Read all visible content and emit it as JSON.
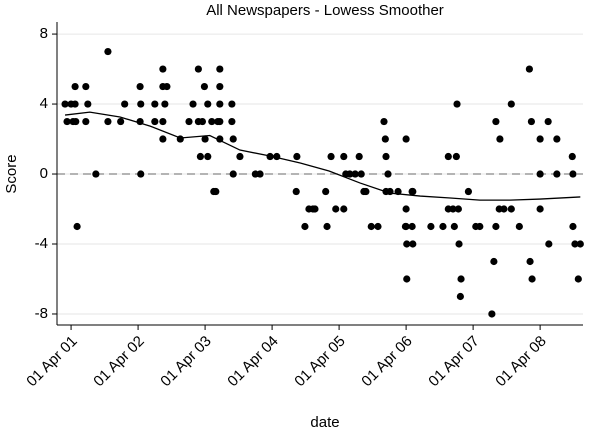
{
  "chart_data": {
    "type": "scatter",
    "title": "All Newspapers - Lowess Smoother",
    "x_label": "date",
    "y_label": "Score",
    "xlim": [
      2001.04,
      2008.89
    ],
    "ylim": [
      -8.63,
      8.69
    ],
    "xticks": [
      {
        "value": 2001.25,
        "label": "01 Apr 01"
      },
      {
        "value": 2002.25,
        "label": "01 Apr 02"
      },
      {
        "value": 2003.25,
        "label": "01 Apr 03"
      },
      {
        "value": 2004.25,
        "label": "01 Apr 04"
      },
      {
        "value": 2005.25,
        "label": "01 Apr 05"
      },
      {
        "value": 2006.25,
        "label": "01 Apr 06"
      },
      {
        "value": 2007.25,
        "label": "01 Apr 07"
      },
      {
        "value": 2008.25,
        "label": "01 Apr 08"
      }
    ],
    "yticks": [
      -8,
      -4,
      0,
      4,
      8
    ],
    "grid": true,
    "reference_line": 0,
    "series": [
      {
        "type": "scatter",
        "color": "#000000",
        "x": [
          2001.16,
          2001.19,
          2001.25,
          2001.28,
          2001.31,
          2001.31,
          2001.32,
          2001.34,
          2001.47,
          2001.5,
          2001.47,
          2001.62,
          2001.8,
          2001.8,
          2001.99,
          2002.05,
          2002.28,
          2002.29,
          2002.28,
          2002.29,
          2002.5,
          2002.5,
          2002.62,
          2002.62,
          2002.65,
          2002.68,
          2002.62,
          2002.62,
          2002.88,
          2003.01,
          2003.07,
          2003.15,
          2003.15,
          2003.21,
          2003.18,
          2003.24,
          2003.25,
          2003.29,
          2003.29,
          2003.35,
          2003.38,
          2003.41,
          2003.44,
          2003.47,
          2003.47,
          2003.47,
          2003.47,
          2003.47,
          2003.65,
          2003.65,
          2003.67,
          2003.67,
          2003.77,
          2004.0,
          2004.07,
          2004.22,
          2004.32,
          2004.62,
          2004.61,
          2004.74,
          2004.8,
          2004.86,
          2004.89,
          2005.05,
          2005.07,
          2005.13,
          2005.2,
          2005.32,
          2005.32,
          2005.35,
          2005.41,
          2005.49,
          2005.55,
          2005.58,
          2005.62,
          2005.65,
          2005.73,
          2005.83,
          2005.92,
          2005.94,
          2005.95,
          2005.98,
          2005.95,
          2006.01,
          2006.13,
          2006.24,
          2006.25,
          2006.25,
          2006.25,
          2006.26,
          2006.26,
          2006.34,
          2006.34,
          2006.35,
          2006.35,
          2006.62,
          2006.8,
          2006.88,
          2006.88,
          2006.95,
          2006.97,
          2007.0,
          2007.01,
          2007.03,
          2007.04,
          2007.06,
          2007.07,
          2007.18,
          2007.29,
          2007.35,
          2007.53,
          2007.56,
          2007.59,
          2007.59,
          2007.64,
          2007.65,
          2007.71,
          2007.82,
          2007.82,
          2007.94,
          2008.1,
          2008.13,
          2008.09,
          2008.12,
          2008.25,
          2008.25,
          2008.25,
          2008.37,
          2008.38,
          2008.5,
          2008.5,
          2008.73,
          2008.74,
          2008.74,
          2008.77,
          2008.82,
          2008.85
        ],
        "values": [
          4,
          3,
          4,
          3,
          4,
          5,
          3,
          -3,
          5,
          4,
          3,
          0,
          7,
          3,
          3,
          4,
          5,
          4,
          3,
          0,
          4,
          3,
          6,
          5,
          4,
          5,
          3,
          2,
          2,
          3,
          4,
          6,
          3,
          3,
          1,
          5,
          2,
          1,
          4,
          3,
          -1,
          -1,
          3,
          6,
          5,
          4,
          3,
          2,
          4,
          3,
          0,
          2,
          1,
          0,
          0,
          1,
          1,
          1,
          -1,
          -3,
          -2,
          -2,
          -2,
          -1,
          -3,
          1,
          -2,
          1,
          -2,
          0,
          0,
          0,
          1,
          0,
          -1,
          -1,
          -3,
          -3,
          3,
          2,
          1,
          0,
          -1,
          -1,
          -1,
          -3,
          2,
          -2,
          -3,
          -4,
          -6,
          -3,
          -1,
          -4,
          -1,
          -3,
          -3,
          1,
          -2,
          -2,
          -3,
          1,
          4,
          -2,
          -4,
          -7,
          -6,
          -1,
          -3,
          -3,
          -8,
          -5,
          3,
          -3,
          -2,
          2,
          -2,
          4,
          -2,
          -3,
          -5,
          -6,
          6,
          3,
          2,
          0,
          -2,
          3,
          -4,
          2,
          0,
          1,
          0,
          -3,
          -4,
          -6,
          -4
        ]
      },
      {
        "type": "line",
        "color": "#000000",
        "x": [
          2001.16,
          2001.53,
          2001.98,
          2002.43,
          2002.88,
          2003.32,
          2003.77,
          2004.22,
          2004.67,
          2005.1,
          2005.56,
          2006.01,
          2006.46,
          2006.91,
          2007.35,
          2007.8,
          2008.25,
          2008.85
        ],
        "values": [
          3.37,
          3.54,
          3.26,
          2.74,
          2.06,
          2.2,
          1.37,
          1.03,
          0.63,
          0.17,
          -0.51,
          -1.09,
          -1.26,
          -1.37,
          -1.49,
          -1.49,
          -1.43,
          -1.31
        ]
      }
    ]
  }
}
